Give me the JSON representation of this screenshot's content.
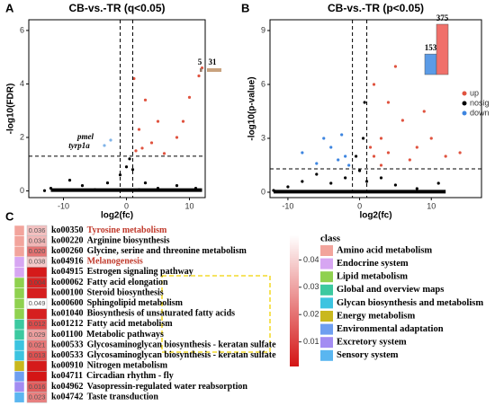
{
  "chart_data": [
    {
      "type": "scatter",
      "panel": "A",
      "title": "CB-vs.-TR (q<0.05)",
      "xlabel": "log2(fc)",
      "ylabel": "-log10(FDR)",
      "xlim": [
        -15.5,
        12.5
      ],
      "ylim": [
        -0.25,
        6.4
      ],
      "xticks": [
        -10,
        0,
        10
      ],
      "yticks": [
        0,
        2,
        4,
        6
      ],
      "vlines": [
        -1,
        1
      ],
      "hline": 1.3,
      "series": [
        {
          "color": "#000000",
          "x": [
            -13,
            -12,
            -10,
            -9,
            -7,
            -5,
            -3,
            -1,
            0,
            0.5,
            1,
            2,
            3,
            5,
            8,
            11
          ],
          "values": [
            0.01,
            0.1,
            0.02,
            0.4,
            0.2,
            0.05,
            0.3,
            0.6,
            0.9,
            1.2,
            0.8,
            0.05,
            0.3,
            0.1,
            0.2,
            0.1
          ]
        },
        {
          "color": "#e0533f",
          "x": [
            1.2,
            1.5,
            2,
            2.5,
            3,
            4,
            5,
            6,
            8,
            9,
            10,
            11.5,
            12
          ],
          "values": [
            4.2,
            1.5,
            2.3,
            1.6,
            3.4,
            1.8,
            2.6,
            1.4,
            2.0,
            2.6,
            3.5,
            4.3,
            4.6
          ]
        },
        {
          "color": "#7fb3e8",
          "x": [
            -2.5,
            -3.5
          ],
          "values": [
            1.9,
            1.7
          ]
        }
      ],
      "annotations": [
        "pmel",
        "tyrp1a"
      ],
      "inset": {
        "values": [
          5,
          31
        ],
        "value_labels": [
          "5",
          "31"
        ],
        "colors": [
          "#9a7b6a",
          "#c9a27e"
        ]
      }
    },
    {
      "type": "scatter",
      "panel": "B",
      "title": "CB-vs.-TR (p<0.05)",
      "xlabel": "log2(fc)",
      "ylabel": "-log10(p-value)",
      "xlim": [
        -12.5,
        17
      ],
      "ylim": [
        -0.3,
        9.6
      ],
      "xticks": [
        -10,
        0,
        10
      ],
      "yticks": [
        0,
        3,
        6,
        9
      ],
      "vlines": [
        -1,
        1
      ],
      "hline": 1.3,
      "series": [
        {
          "name": "up",
          "color": "#e0533f",
          "x": [
            1.5,
            2,
            2,
            3,
            3,
            4,
            4,
            5,
            6,
            7,
            8,
            9,
            10,
            12,
            14
          ],
          "values": [
            2.5,
            2,
            6,
            3,
            1.5,
            5,
            2.2,
            7,
            4,
            1.8,
            2.5,
            4.5,
            3,
            2,
            2.2
          ]
        },
        {
          "name": "nosig",
          "color": "#000000",
          "x": [
            -12,
            -10,
            -8,
            -6,
            -4,
            -2,
            -0.5,
            0,
            0.5,
            0.7,
            1,
            3,
            5,
            8,
            11
          ],
          "values": [
            0.1,
            0.3,
            0.6,
            1,
            0.5,
            0.8,
            2,
            1.2,
            3,
            5,
            0.6,
            0.8,
            0.4,
            0.2,
            0.5
          ]
        },
        {
          "name": "down",
          "color": "#3d85e0",
          "x": [
            -1.5,
            -2,
            -2.5,
            -3,
            -4,
            -5,
            -6,
            -8
          ],
          "values": [
            1.5,
            2,
            3.2,
            1.8,
            2.5,
            3,
            1.6,
            2.2
          ]
        }
      ],
      "inset": {
        "values": [
          153,
          375
        ],
        "value_labels": [
          "153",
          "375"
        ],
        "colors": [
          "#5b9be6",
          "#f0706a"
        ]
      }
    },
    {
      "type": "heatmap",
      "panel": "C",
      "ids": [
        "ko00350",
        "ko00220",
        "ko00260",
        "ko04916",
        "ko04915",
        "ko00062",
        "ko00100",
        "ko00600",
        "ko01040",
        "ko01212",
        "ko01100",
        "ko00533",
        "ko00533",
        "ko00910",
        "ko04711",
        "ko04962",
        "ko04742"
      ],
      "pathways": [
        "Tyrosine metabolism",
        "Arginine biosynthesis",
        "Glycine, serine and threonine metabolism",
        "Melanogenesis",
        "Estrogen signaling pathway",
        "Fatty acid elongation",
        "Steroid biosynthesis",
        "Sphingolipid metabolism",
        "Biosynthesis of unsaturated fatty acids",
        "Fatty acid metabolism",
        "Metabolic pathways",
        "Glycosaminoglycan biosynthesis - keratan sulfate",
        "Glycosaminoglycan biosynthesis - keratan sulfate",
        "Nitrogen metabolism",
        "Circadian rhythm - fly",
        "Vasopressin-regulated water reabsorption",
        "Taste transduction"
      ],
      "classes": [
        0,
        0,
        0,
        1,
        1,
        2,
        2,
        2,
        2,
        3,
        3,
        4,
        4,
        5,
        6,
        7,
        8
      ],
      "values": [
        0.036,
        0.034,
        0.02,
        0.038,
        0.002,
        0.004,
        0.003,
        0.049,
        0.003,
        0.012,
        0.029,
        0.021,
        0.013,
        0.002,
        0.001,
        0.016,
        0.023
      ],
      "value_labels": [
        "0.036",
        "0.034",
        "0.020",
        "0.038",
        null,
        "0.004",
        null,
        "0.049",
        null,
        "0.012",
        "0.029",
        "0.021",
        "0.013",
        null,
        null,
        "0.016",
        "0.023"
      ],
      "highlight": [
        0,
        3
      ],
      "highlight_color": "#c0392b",
      "clim": [
        0.001,
        0.049
      ],
      "cticks": [
        0.01,
        0.02,
        0.03,
        0.04
      ],
      "color_low": "#d41515",
      "color_high": "#ffffff",
      "legend_title": "class",
      "class_names": [
        "Amino acid metabolism",
        "Endocrine system",
        "Lipid metabolism",
        "Global and overview maps",
        "Glycan biosynthesis and metabolism",
        "Energy metabolism",
        "Environmental adaptation",
        "Excretory system",
        "Sensory system"
      ],
      "class_colors": [
        "#f2a49c",
        "#d7a6f2",
        "#8fd14f",
        "#3cc9a0",
        "#3cc4e0",
        "#c9b81e",
        "#6f9ff0",
        "#a38cf2",
        "#5ab6f0"
      ]
    }
  ]
}
